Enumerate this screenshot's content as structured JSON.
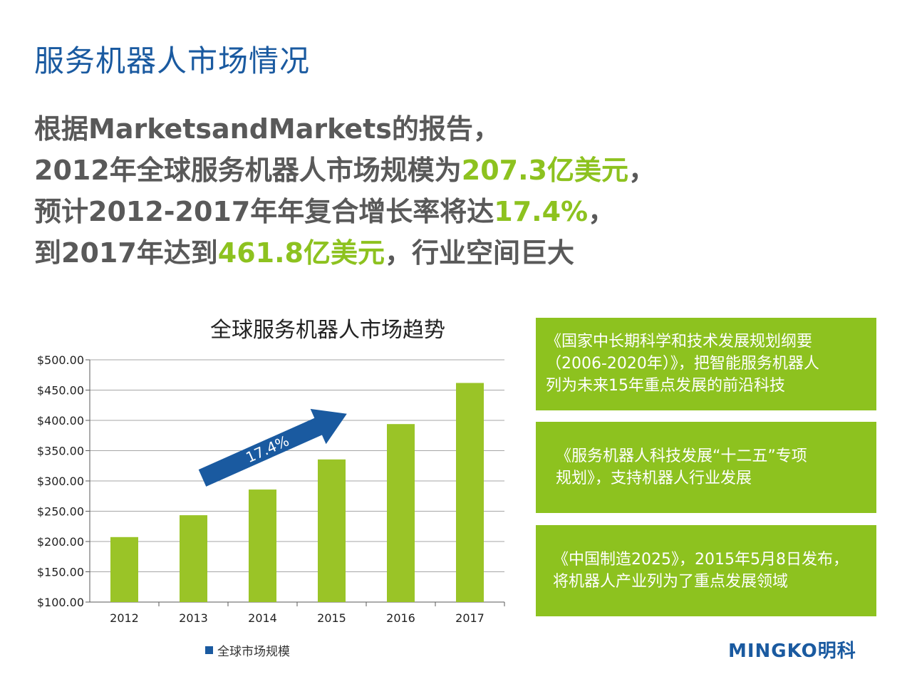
{
  "header": {
    "title": "服务机器人市场情况"
  },
  "intro": {
    "l1": "根据MarketsandMarkets的报告，",
    "l2a": "2012年全球服务机器人市场规模为",
    "l2b": "207.3亿美元",
    "l2c": "，",
    "l3a": "预计2012-2017年年复合增长率将达",
    "l3b": "17.4%",
    "l3c": "，",
    "l4a": "到2017年达到",
    "l4b": "461.8亿美元",
    "l4c": "，行业空间巨大"
  },
  "colors": {
    "title": "#1a5aa0",
    "highlight": "#8dc21f",
    "bar": "#9ac427",
    "arrow": "#1a5aa0",
    "legend": "#1a5aa0",
    "box": "#8dc21f"
  },
  "chart_data": {
    "type": "bar",
    "title": "全球服务机器人市场趋势",
    "categories": [
      "2012",
      "2013",
      "2014",
      "2015",
      "2016",
      "2017"
    ],
    "series": [
      {
        "name": "全球市场规模",
        "values": [
          207.3,
          243.4,
          285.8,
          335.5,
          393.9,
          461.8
        ]
      }
    ],
    "ylim": [
      100,
      500
    ],
    "yticks": [
      "$100.00",
      "$150.00",
      "$200.00",
      "$250.00",
      "$300.00",
      "$350.00",
      "$400.00",
      "$450.00",
      "$500.00"
    ],
    "grid": true,
    "legend": "bottom",
    "annotation": "17.4%"
  },
  "boxes": [
    {
      "lines": [
        "《国家中长期科学和技术发展规划纲要",
        "（2006-2020年）》，把智能服务机器人",
        "列为未来15年重点发展的前沿科技"
      ]
    },
    {
      "lines": [
        "《服务机器人科技发展“十二五”专项",
        "规划》，支持机器人行业发展"
      ]
    },
    {
      "lines": [
        "《中国制造2025》，2015年5月8日发布，",
        "将机器人产业列为了重点发展领域"
      ]
    }
  ],
  "logo": {
    "text": "MINGKO明科"
  }
}
